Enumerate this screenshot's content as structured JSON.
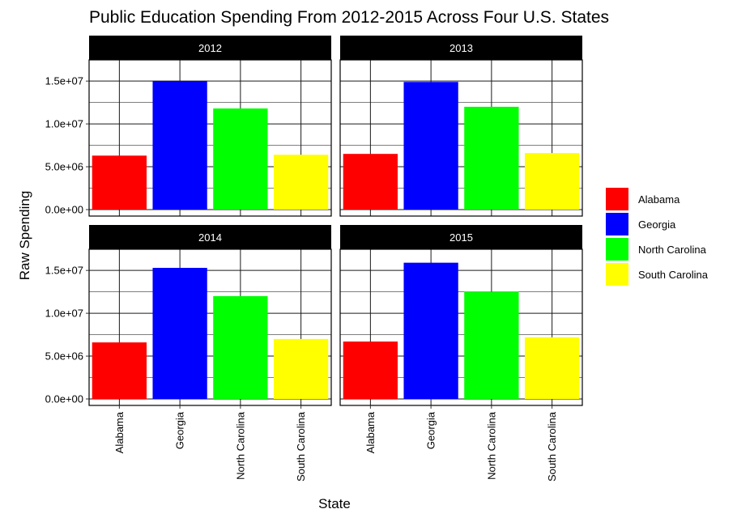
{
  "chart_data": {
    "type": "bar",
    "title": "Public Education Spending From 2012-2015 Across Four U.S. States",
    "xlabel": "State",
    "ylabel": "Raw Spending",
    "categories": [
      "Alabama",
      "Georgia",
      "North Carolina",
      "South Carolina"
    ],
    "colors": [
      "#FF0000",
      "#0000FF",
      "#00FF00",
      "#FFFF00"
    ],
    "ylim": [
      0,
      17000000
    ],
    "yticks": [
      0,
      5000000,
      10000000,
      15000000
    ],
    "ytick_labels": [
      "0.0e+00",
      "5.0e+06",
      "1.0e+07",
      "1.5e+07"
    ],
    "grid": true,
    "legend_position": "right",
    "legend": [
      "Alabama",
      "Georgia",
      "North Carolina",
      "South Carolina"
    ],
    "panels": [
      {
        "label": "2012",
        "values": [
          6300000,
          15000000,
          11800000,
          6400000
        ]
      },
      {
        "label": "2013",
        "values": [
          6500000,
          14900000,
          12000000,
          6600000
        ]
      },
      {
        "label": "2014",
        "values": [
          6600000,
          15300000,
          12000000,
          7000000
        ]
      },
      {
        "label": "2015",
        "values": [
          6700000,
          15900000,
          12500000,
          7200000
        ]
      }
    ]
  }
}
